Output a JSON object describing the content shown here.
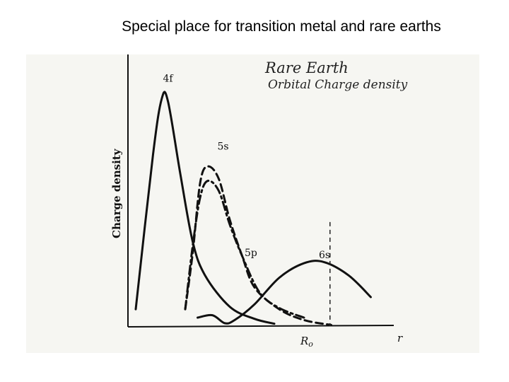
{
  "slide": {
    "title": "Special place for transition metal and rare earths"
  },
  "chart_data": {
    "type": "line",
    "annotation": [
      "Rare Earth",
      "Orbital Charge density"
    ],
    "ylabel": "Charge density",
    "xlabel": "r",
    "marker_label": "R",
    "marker_subscript": "o",
    "xlim": [
      0,
      10
    ],
    "ylim": [
      0,
      10
    ],
    "grid": false,
    "series": [
      {
        "name": "4f",
        "style": "solid",
        "points": [
          [
            0.2,
            0.7
          ],
          [
            0.9,
            7.1
          ],
          [
            1.25,
            9.4
          ],
          [
            1.5,
            9.3
          ],
          [
            2.0,
            6.3
          ],
          [
            2.5,
            3.5
          ],
          [
            3.0,
            2.1
          ],
          [
            4.0,
            0.8
          ],
          [
            5.0,
            0.3
          ],
          [
            5.8,
            0.1
          ]
        ]
      },
      {
        "name": "5s",
        "style": "dashed",
        "points": [
          [
            2.2,
            0.7
          ],
          [
            2.5,
            3.0
          ],
          [
            2.8,
            5.9
          ],
          [
            3.1,
            6.6
          ],
          [
            3.55,
            6.1
          ],
          [
            4.0,
            4.4
          ],
          [
            4.5,
            2.9
          ],
          [
            5.0,
            1.6
          ],
          [
            6.0,
            0.7
          ],
          [
            7.0,
            0.25
          ],
          [
            8.1,
            0.05
          ]
        ]
      },
      {
        "name": "5p",
        "style": "dash-dot",
        "points": [
          [
            2.2,
            0.7
          ],
          [
            2.5,
            3.3
          ],
          [
            2.8,
            5.3
          ],
          [
            3.1,
            6.0
          ],
          [
            3.55,
            5.6
          ],
          [
            4.0,
            4.2
          ],
          [
            4.5,
            2.9
          ],
          [
            5.2,
            1.4
          ],
          [
            6.0,
            0.75
          ],
          [
            7.0,
            0.35
          ]
        ]
      },
      {
        "name": "6s",
        "style": "solid",
        "points": [
          [
            2.7,
            0.35
          ],
          [
            3.3,
            0.45
          ],
          [
            3.8,
            0.12
          ],
          [
            4.2,
            0.25
          ],
          [
            5.0,
            0.9
          ],
          [
            6.0,
            2.0
          ],
          [
            7.0,
            2.6
          ],
          [
            7.8,
            2.65
          ],
          [
            8.8,
            2.1
          ],
          [
            9.7,
            1.2
          ]
        ]
      }
    ],
    "series_label_positions": {
      "4f": [
        1.3,
        10.1
      ],
      "5s": [
        3.5,
        7.3
      ],
      "5p": [
        4.6,
        2.9
      ],
      "6s": [
        7.6,
        2.8
      ]
    },
    "marker_x": 8.05
  }
}
